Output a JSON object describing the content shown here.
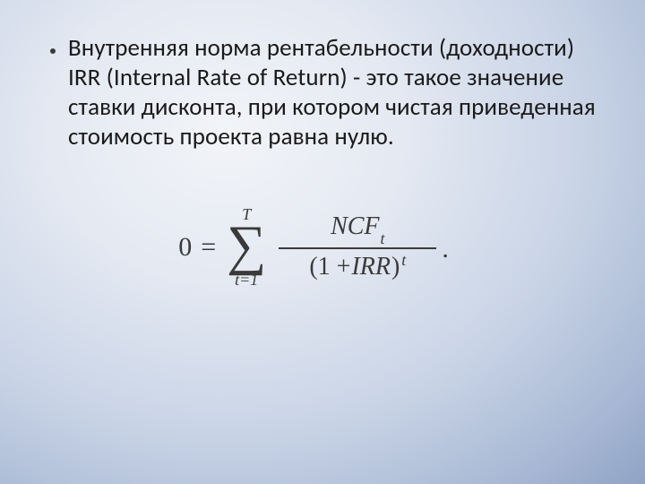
{
  "slide": {
    "background": {
      "type": "radial-gradient",
      "center_color": "#f2f4f8",
      "outer_color": "#8fa3c6"
    },
    "bullet": {
      "text": "Внутренняя норма рентабельности (доходности) IRR (Internal Rate of Return) - это такое значение ставки дисконта, при котором чистая приведенная стоимость проекта равна нулю.",
      "font_size_pt": 27,
      "text_color": "#1a1a1a",
      "bullet_color": "#3a3a3a"
    },
    "formula": {
      "type": "equation",
      "lhs": "0",
      "equals": "=",
      "summation": {
        "symbol": "∑",
        "upper": "T",
        "lower": "t=1"
      },
      "fraction": {
        "numerator_base": "NCF",
        "numerator_sub": "t",
        "denominator_open": "(1 + ",
        "denominator_var": "IRR",
        "denominator_close": ")",
        "denominator_exp": "t"
      },
      "terminator": ".",
      "color": "#3a3a3a",
      "font_family": "Cambria Math"
    }
  }
}
